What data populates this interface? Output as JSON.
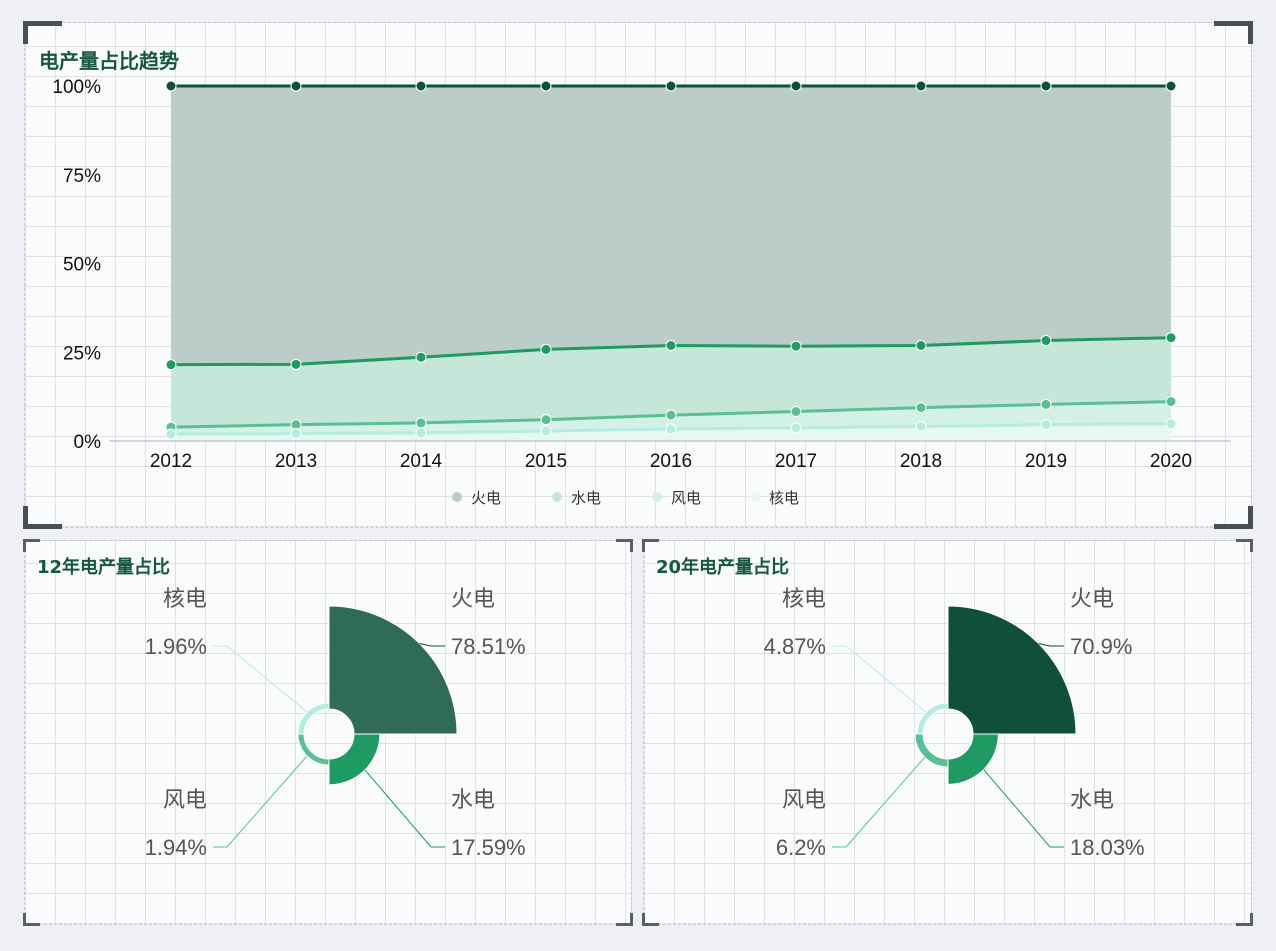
{
  "colors": {
    "thermal": "#104f3a",
    "hydro": "#1e9a62",
    "wind": "#5bbf95",
    "nuclear": "#b5ecdf",
    "thermal_area": "#bbcdc8",
    "hydro_area": "#c5e6d8",
    "wind_area": "#d3f1e6",
    "nuclear_area": "#e6f8f1"
  },
  "chart_data": [
    {
      "type": "area",
      "stacked": true,
      "title": "电产量占比趋势",
      "x": [
        "2012",
        "2013",
        "2014",
        "2015",
        "2016",
        "2017",
        "2018",
        "2019",
        "2020"
      ],
      "yticks": [
        "0%",
        "25%",
        "50%",
        "75%",
        "100%"
      ],
      "ylim": [
        0,
        100
      ],
      "legend_position": "bottom-center",
      "grid": false,
      "series": [
        {
          "name": "火电",
          "cumulative": [
            100,
            100,
            100,
            100,
            100,
            100,
            100,
            100,
            100
          ]
        },
        {
          "name": "水电",
          "cumulative": [
            21.5,
            21.6,
            23.6,
            25.8,
            26.9,
            26.7,
            26.9,
            28.3,
            29.1
          ]
        },
        {
          "name": "风电",
          "cumulative": [
            3.9,
            4.6,
            5.1,
            6.0,
            7.3,
            8.3,
            9.4,
            10.3,
            11.1
          ]
        },
        {
          "name": "核电",
          "cumulative": [
            1.96,
            2.1,
            2.3,
            2.8,
            3.4,
            3.7,
            4.1,
            4.6,
            4.87
          ]
        }
      ]
    },
    {
      "type": "pie",
      "rose": true,
      "title": "12年电产量占比",
      "slices": [
        {
          "name": "火电",
          "value": 78.51,
          "label": "78.51%"
        },
        {
          "name": "水电",
          "value": 17.59,
          "label": "17.59%"
        },
        {
          "name": "风电",
          "value": 1.94,
          "label": "1.94%"
        },
        {
          "name": "核电",
          "value": 1.96,
          "label": "1.96%"
        }
      ]
    },
    {
      "type": "pie",
      "rose": true,
      "title": "20年电产量占比",
      "slices": [
        {
          "name": "火电",
          "value": 70.9,
          "label": "70.9%"
        },
        {
          "name": "水电",
          "value": 18.03,
          "label": "18.03%"
        },
        {
          "name": "风电",
          "value": 6.2,
          "label": "6.2%"
        },
        {
          "name": "核电",
          "value": 4.87,
          "label": "4.87%"
        }
      ]
    }
  ]
}
